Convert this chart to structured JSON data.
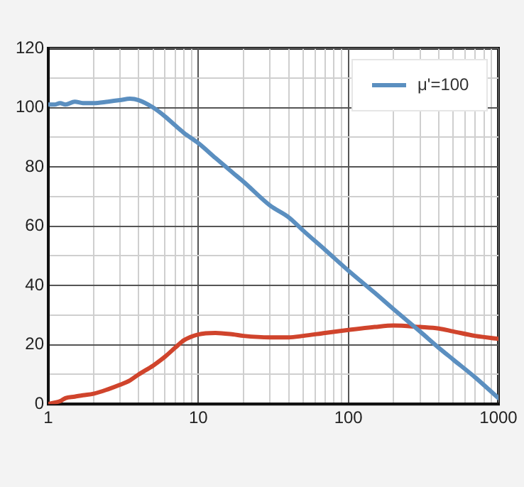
{
  "chart_data": {
    "type": "line",
    "log": "x",
    "grid": true,
    "legend": "top right",
    "marker": "none",
    "line_style": "solid",
    "xlim": [
      1,
      1000
    ],
    "xticks": [
      1,
      {
        "value": 2,
        "label": null
      },
      {
        "value": 3,
        "label": null
      },
      {
        "value": 4,
        "label": null
      },
      {
        "value": 5,
        "label": null
      },
      {
        "value": 6,
        "label": null
      },
      {
        "value": 7,
        "label": null
      },
      {
        "value": 8,
        "label": null
      },
      {
        "value": 9,
        "label": null
      },
      10,
      {
        "value": 20,
        "label": null
      },
      {
        "value": 30,
        "label": null
      },
      {
        "value": 40,
        "label": null
      },
      {
        "value": 50,
        "label": null
      },
      {
        "value": 60,
        "label": null
      },
      {
        "value": 70,
        "label": null
      },
      {
        "value": 80,
        "label": null
      },
      {
        "value": 90,
        "label": null
      },
      100,
      {
        "value": 200,
        "label": null
      },
      {
        "value": 300,
        "label": null
      },
      {
        "value": 400,
        "label": null
      },
      {
        "value": 500,
        "label": null
      },
      {
        "value": 600,
        "label": null
      },
      {
        "value": 700,
        "label": null
      },
      {
        "value": 800,
        "label": null
      },
      {
        "value": 900,
        "label": null
      },
      1000
    ],
    "ylim": [
      0,
      120
    ],
    "yticks": [
      0,
      {
        "value": 10,
        "label": null
      },
      20,
      {
        "value": 30,
        "label": null
      },
      40,
      {
        "value": 50,
        "label": null
      },
      60,
      {
        "value": 70,
        "label": null
      },
      80,
      {
        "value": 90,
        "label": null
      },
      100,
      {
        "value": 110,
        "label": null
      },
      120
    ],
    "x": [
      1,
      1.1,
      1.2,
      1.3,
      1.5,
      1.7,
      2,
      2.5,
      3,
      3.5,
      4,
      5,
      6,
      7,
      8,
      10,
      13,
      17,
      20,
      30,
      40,
      50,
      70,
      100,
      150,
      200,
      300,
      400,
      500,
      700,
      1000
    ],
    "series": [
      {
        "name": "μ'=100",
        "color": "#5b8fc0",
        "values": [
          101,
          101,
          101.5,
          101,
          102,
          101.5,
          101.5,
          102,
          102.5,
          103,
          102.5,
          100,
          97,
          94,
          91.5,
          88,
          83,
          78,
          75,
          67,
          63,
          58.5,
          52,
          45,
          37.5,
          32,
          24.5,
          19,
          15,
          9,
          2
        ]
      },
      {
        "color": "#d0442c",
        "values": [
          0,
          0.5,
          1,
          2,
          2.5,
          3,
          3.5,
          5,
          6.5,
          8,
          10,
          13,
          16,
          19,
          21.5,
          23.5,
          24,
          23.5,
          23,
          22.5,
          22.5,
          23,
          24,
          25,
          26,
          26.5,
          26,
          25.5,
          24.5,
          23,
          22
        ]
      }
    ]
  }
}
